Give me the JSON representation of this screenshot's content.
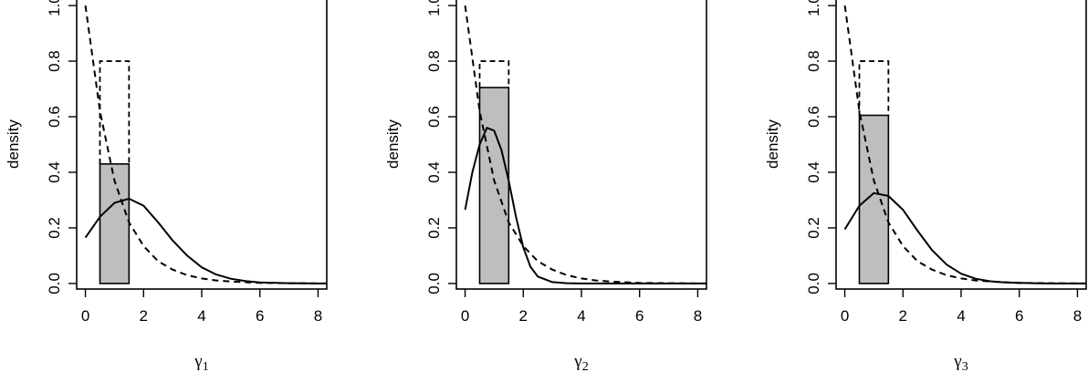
{
  "chart_data": [
    {
      "type": "line",
      "xlabel": "γ",
      "xlabel_sub": "1",
      "ylabel": "density",
      "xlim": [
        -0.3,
        8.3
      ],
      "ylim": [
        -0.02,
        1.02
      ],
      "xticks": [
        "0",
        "2",
        "4",
        "6",
        "8"
      ],
      "yticks": [
        "0.0",
        "0.2",
        "0.4",
        "0.6",
        "0.8",
        "1.0"
      ],
      "bar": {
        "x0": 0.5,
        "x1": 1.5,
        "height": 0.43,
        "fill": "#bebebe"
      },
      "prior_box": {
        "x0": 0.5,
        "x1": 1.5,
        "height": 0.8
      },
      "series": [
        {
          "style": "solid",
          "x": [
            0,
            0.5,
            1,
            1.5,
            2,
            2.5,
            3,
            3.5,
            4,
            4.5,
            5,
            5.5,
            6,
            7,
            8,
            8.3
          ],
          "y": [
            0.165,
            0.24,
            0.29,
            0.305,
            0.28,
            0.22,
            0.155,
            0.1,
            0.058,
            0.032,
            0.017,
            0.009,
            0.004,
            0.001,
            0.0,
            0.0
          ]
        },
        {
          "style": "dashed",
          "x": [
            0,
            0.5,
            1,
            1.5,
            2,
            2.5,
            3,
            3.5,
            4,
            4.5,
            5,
            6,
            7,
            8.3
          ],
          "y": [
            1.0,
            0.62,
            0.37,
            0.22,
            0.135,
            0.08,
            0.05,
            0.03,
            0.018,
            0.011,
            0.007,
            0.002,
            0.001,
            0.0
          ]
        }
      ]
    },
    {
      "type": "line",
      "xlabel": "γ",
      "xlabel_sub": "2",
      "ylabel": "density",
      "xlim": [
        -0.3,
        8.3
      ],
      "ylim": [
        -0.02,
        1.02
      ],
      "xticks": [
        "0",
        "2",
        "4",
        "6",
        "8"
      ],
      "yticks": [
        "0.0",
        "0.2",
        "0.4",
        "0.6",
        "0.8",
        "1.0"
      ],
      "bar": {
        "x0": 0.5,
        "x1": 1.5,
        "height": 0.705,
        "fill": "#bebebe"
      },
      "prior_box": {
        "x0": 0.5,
        "x1": 1.5,
        "height": 0.8
      },
      "series": [
        {
          "style": "solid",
          "x": [
            0,
            0.25,
            0.5,
            0.75,
            1,
            1.25,
            1.5,
            1.75,
            2,
            2.25,
            2.5,
            3,
            3.5,
            4,
            5,
            6,
            8.3
          ],
          "y": [
            0.265,
            0.4,
            0.5,
            0.56,
            0.55,
            0.48,
            0.37,
            0.24,
            0.13,
            0.06,
            0.025,
            0.005,
            0.001,
            0.0,
            0.0,
            0.0,
            0.0
          ]
        },
        {
          "style": "dashed",
          "x": [
            0,
            0.5,
            1,
            1.5,
            2,
            2.5,
            3,
            3.5,
            4,
            4.5,
            5,
            6,
            7,
            8.3
          ],
          "y": [
            1.0,
            0.62,
            0.37,
            0.22,
            0.135,
            0.08,
            0.05,
            0.03,
            0.018,
            0.011,
            0.007,
            0.002,
            0.001,
            0.0
          ]
        }
      ]
    },
    {
      "type": "line",
      "xlabel": "γ",
      "xlabel_sub": "3",
      "ylabel": "density",
      "xlim": [
        -0.3,
        8.3
      ],
      "ylim": [
        -0.02,
        1.02
      ],
      "xticks": [
        "0",
        "2",
        "4",
        "6",
        "8"
      ],
      "yticks": [
        "0.0",
        "0.2",
        "0.4",
        "0.6",
        "0.8",
        "1.0"
      ],
      "bar": {
        "x0": 0.5,
        "x1": 1.5,
        "height": 0.605,
        "fill": "#bebebe"
      },
      "prior_box": {
        "x0": 0.5,
        "x1": 1.5,
        "height": 0.8
      },
      "series": [
        {
          "style": "solid",
          "x": [
            0,
            0.5,
            1,
            1.5,
            2,
            2.5,
            3,
            3.5,
            4,
            4.5,
            5,
            5.5,
            6,
            7,
            8.3
          ],
          "y": [
            0.195,
            0.28,
            0.325,
            0.315,
            0.265,
            0.19,
            0.12,
            0.068,
            0.035,
            0.017,
            0.008,
            0.004,
            0.002,
            0.0,
            0.0
          ]
        },
        {
          "style": "dashed",
          "x": [
            0,
            0.5,
            1,
            1.5,
            2,
            2.5,
            3,
            3.5,
            4,
            4.5,
            5,
            6,
            7,
            8.3
          ],
          "y": [
            1.0,
            0.62,
            0.37,
            0.22,
            0.135,
            0.08,
            0.05,
            0.03,
            0.018,
            0.011,
            0.007,
            0.002,
            0.001,
            0.0
          ]
        }
      ]
    }
  ]
}
